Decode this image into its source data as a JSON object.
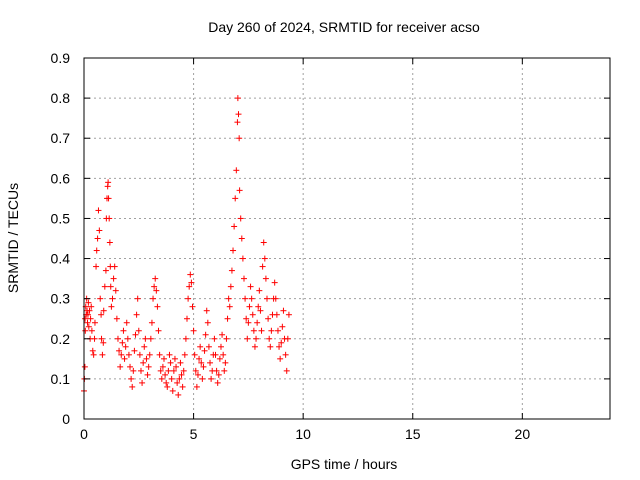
{
  "chart_data": {
    "type": "scatter",
    "title": "Day 260 of 2024, SRMTID for receiver acso",
    "xlabel": "GPS time / hours",
    "ylabel": "SRMTID / TECUs",
    "xlim": [
      0,
      24
    ],
    "ylim": [
      0,
      0.9
    ],
    "xticks": [
      0,
      5,
      10,
      15,
      20
    ],
    "yticks": [
      0,
      0.1,
      0.2,
      0.3,
      0.4,
      0.5,
      0.6,
      0.7,
      0.8,
      0.9
    ],
    "xtick_labels": [
      "0",
      "5",
      "10",
      "15",
      "20"
    ],
    "ytick_labels": [
      "0",
      "0.1",
      "0.2",
      "0.3",
      "0.4",
      "0.5",
      "0.6",
      "0.7",
      "0.8",
      "0.9"
    ],
    "grid": true,
    "marker": "plus",
    "color": "#ff0000",
    "series": [
      {
        "name": "SRMTID",
        "points": [
          [
            0.0,
            0.07
          ],
          [
            0.02,
            0.1
          ],
          [
            0.04,
            0.13
          ],
          [
            0.05,
            0.25
          ],
          [
            0.06,
            0.22
          ],
          [
            0.08,
            0.28
          ],
          [
            0.1,
            0.26
          ],
          [
            0.12,
            0.3
          ],
          [
            0.14,
            0.27
          ],
          [
            0.16,
            0.24
          ],
          [
            0.18,
            0.26
          ],
          [
            0.2,
            0.29
          ],
          [
            0.22,
            0.23
          ],
          [
            0.25,
            0.27
          ],
          [
            0.28,
            0.2
          ],
          [
            0.3,
            0.25
          ],
          [
            0.33,
            0.28
          ],
          [
            0.36,
            0.22
          ],
          [
            0.4,
            0.17
          ],
          [
            0.44,
            0.16
          ],
          [
            0.48,
            0.2
          ],
          [
            0.5,
            0.24
          ],
          [
            0.55,
            0.38
          ],
          [
            0.58,
            0.42
          ],
          [
            0.62,
            0.45
          ],
          [
            0.66,
            0.52
          ],
          [
            0.7,
            0.47
          ],
          [
            0.74,
            0.3
          ],
          [
            0.78,
            0.26
          ],
          [
            0.8,
            0.2
          ],
          [
            0.84,
            0.16
          ],
          [
            0.88,
            0.19
          ],
          [
            0.9,
            0.27
          ],
          [
            0.95,
            0.33
          ],
          [
            1.0,
            0.37
          ],
          [
            1.02,
            0.5
          ],
          [
            1.05,
            0.55
          ],
          [
            1.08,
            0.58
          ],
          [
            1.1,
            0.59
          ],
          [
            1.12,
            0.55
          ],
          [
            1.15,
            0.5
          ],
          [
            1.18,
            0.44
          ],
          [
            1.2,
            0.38
          ],
          [
            1.22,
            0.33
          ],
          [
            1.25,
            0.28
          ],
          [
            1.3,
            0.3
          ],
          [
            1.35,
            0.35
          ],
          [
            1.4,
            0.38
          ],
          [
            1.45,
            0.32
          ],
          [
            1.5,
            0.25
          ],
          [
            1.55,
            0.2
          ],
          [
            1.6,
            0.17
          ],
          [
            1.65,
            0.13
          ],
          [
            1.7,
            0.16
          ],
          [
            1.75,
            0.19
          ],
          [
            1.8,
            0.22
          ],
          [
            1.85,
            0.15
          ],
          [
            1.9,
            0.18
          ],
          [
            1.95,
            0.24
          ],
          [
            2.0,
            0.2
          ],
          [
            2.05,
            0.16
          ],
          [
            2.1,
            0.13
          ],
          [
            2.15,
            0.1
          ],
          [
            2.2,
            0.08
          ],
          [
            2.25,
            0.12
          ],
          [
            2.3,
            0.17
          ],
          [
            2.35,
            0.21
          ],
          [
            2.4,
            0.26
          ],
          [
            2.45,
            0.3
          ],
          [
            2.5,
            0.22
          ],
          [
            2.55,
            0.16
          ],
          [
            2.6,
            0.12
          ],
          [
            2.65,
            0.09
          ],
          [
            2.7,
            0.14
          ],
          [
            2.75,
            0.18
          ],
          [
            2.8,
            0.2
          ],
          [
            2.85,
            0.15
          ],
          [
            2.9,
            0.11
          ],
          [
            2.95,
            0.13
          ],
          [
            3.0,
            0.16
          ],
          [
            3.05,
            0.2
          ],
          [
            3.1,
            0.24
          ],
          [
            3.15,
            0.3
          ],
          [
            3.2,
            0.33
          ],
          [
            3.25,
            0.35
          ],
          [
            3.3,
            0.32
          ],
          [
            3.35,
            0.28
          ],
          [
            3.4,
            0.22
          ],
          [
            3.45,
            0.16
          ],
          [
            3.5,
            0.12
          ],
          [
            3.55,
            0.1
          ],
          [
            3.6,
            0.13
          ],
          [
            3.65,
            0.15
          ],
          [
            3.7,
            0.11
          ],
          [
            3.75,
            0.09
          ],
          [
            3.8,
            0.08
          ],
          [
            3.85,
            0.12
          ],
          [
            3.9,
            0.16
          ],
          [
            3.95,
            0.14
          ],
          [
            4.0,
            0.1
          ],
          [
            4.05,
            0.07
          ],
          [
            4.1,
            0.12
          ],
          [
            4.15,
            0.15
          ],
          [
            4.2,
            0.13
          ],
          [
            4.25,
            0.09
          ],
          [
            4.3,
            0.06
          ],
          [
            4.35,
            0.1
          ],
          [
            4.4,
            0.14
          ],
          [
            4.45,
            0.11
          ],
          [
            4.5,
            0.08
          ],
          [
            4.55,
            0.12
          ],
          [
            4.6,
            0.16
          ],
          [
            4.65,
            0.2
          ],
          [
            4.7,
            0.25
          ],
          [
            4.75,
            0.3
          ],
          [
            4.8,
            0.33
          ],
          [
            4.85,
            0.36
          ],
          [
            4.9,
            0.34
          ],
          [
            4.95,
            0.28
          ],
          [
            5.0,
            0.22
          ],
          [
            5.05,
            0.16
          ],
          [
            5.1,
            0.12
          ],
          [
            5.15,
            0.08
          ],
          [
            5.2,
            0.11
          ],
          [
            5.25,
            0.15
          ],
          [
            5.3,
            0.18
          ],
          [
            5.35,
            0.14
          ],
          [
            5.4,
            0.1
          ],
          [
            5.45,
            0.13
          ],
          [
            5.5,
            0.17
          ],
          [
            5.55,
            0.21
          ],
          [
            5.6,
            0.27
          ],
          [
            5.65,
            0.24
          ],
          [
            5.7,
            0.18
          ],
          [
            5.75,
            0.14
          ],
          [
            5.8,
            0.1
          ],
          [
            5.85,
            0.12
          ],
          [
            5.9,
            0.16
          ],
          [
            5.95,
            0.2
          ],
          [
            6.0,
            0.16
          ],
          [
            6.05,
            0.12
          ],
          [
            6.1,
            0.09
          ],
          [
            6.15,
            0.11
          ],
          [
            6.2,
            0.15
          ],
          [
            6.25,
            0.18
          ],
          [
            6.3,
            0.21
          ],
          [
            6.35,
            0.16
          ],
          [
            6.4,
            0.12
          ],
          [
            6.45,
            0.14
          ],
          [
            6.5,
            0.2
          ],
          [
            6.55,
            0.25
          ],
          [
            6.6,
            0.3
          ],
          [
            6.65,
            0.28
          ],
          [
            6.7,
            0.33
          ],
          [
            6.75,
            0.37
          ],
          [
            6.8,
            0.42
          ],
          [
            6.85,
            0.48
          ],
          [
            6.9,
            0.55
          ],
          [
            6.95,
            0.62
          ],
          [
            7.0,
            0.74
          ],
          [
            7.02,
            0.8
          ],
          [
            7.05,
            0.76
          ],
          [
            7.08,
            0.7
          ],
          [
            7.1,
            0.57
          ],
          [
            7.15,
            0.5
          ],
          [
            7.2,
            0.45
          ],
          [
            7.25,
            0.4
          ],
          [
            7.3,
            0.35
          ],
          [
            7.35,
            0.3
          ],
          [
            7.4,
            0.25
          ],
          [
            7.45,
            0.2
          ],
          [
            7.5,
            0.24
          ],
          [
            7.55,
            0.28
          ],
          [
            7.6,
            0.33
          ],
          [
            7.65,
            0.3
          ],
          [
            7.7,
            0.26
          ],
          [
            7.75,
            0.22
          ],
          [
            7.8,
            0.18
          ],
          [
            7.85,
            0.2
          ],
          [
            7.9,
            0.24
          ],
          [
            7.95,
            0.28
          ],
          [
            8.0,
            0.32
          ],
          [
            8.05,
            0.27
          ],
          [
            8.1,
            0.22
          ],
          [
            8.15,
            0.38
          ],
          [
            8.2,
            0.44
          ],
          [
            8.25,
            0.4
          ],
          [
            8.3,
            0.35
          ],
          [
            8.35,
            0.3
          ],
          [
            8.4,
            0.25
          ],
          [
            8.45,
            0.2
          ],
          [
            8.5,
            0.18
          ],
          [
            8.55,
            0.22
          ],
          [
            8.6,
            0.26
          ],
          [
            8.65,
            0.3
          ],
          [
            8.7,
            0.34
          ],
          [
            8.75,
            0.3
          ],
          [
            8.8,
            0.26
          ],
          [
            8.85,
            0.22
          ],
          [
            8.9,
            0.18
          ],
          [
            8.95,
            0.15
          ],
          [
            9.0,
            0.19
          ],
          [
            9.05,
            0.23
          ],
          [
            9.1,
            0.27
          ],
          [
            9.15,
            0.2
          ],
          [
            9.2,
            0.16
          ],
          [
            9.25,
            0.12
          ],
          [
            9.3,
            0.2
          ],
          [
            9.35,
            0.26
          ]
        ]
      }
    ]
  }
}
